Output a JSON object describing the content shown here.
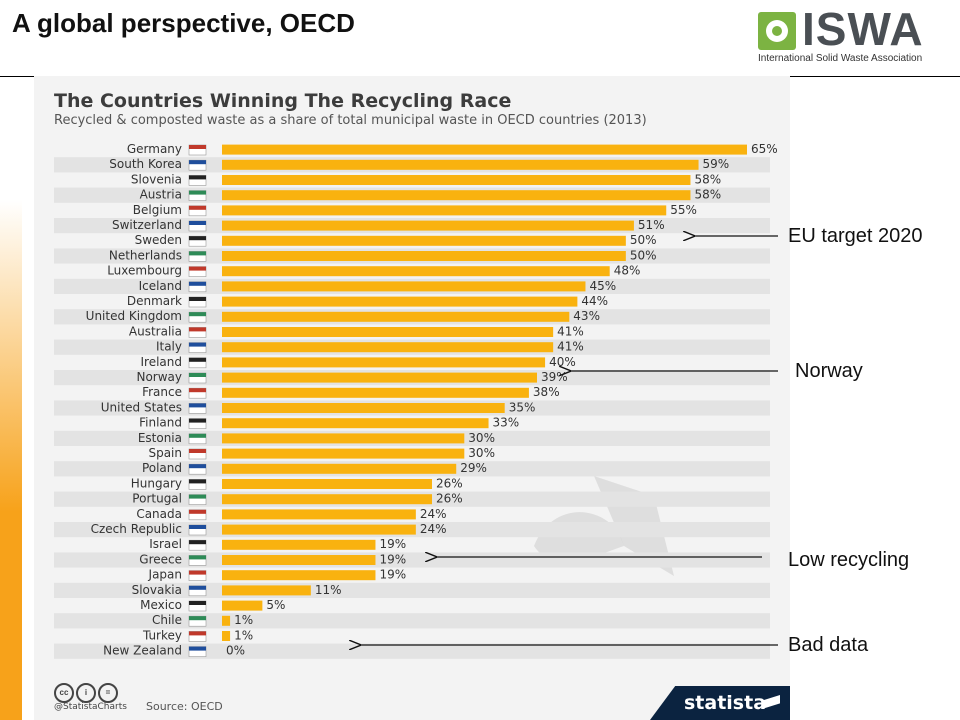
{
  "slide": {
    "title": "A global perspective, OECD"
  },
  "logo": {
    "word": "ISWA",
    "subtitle": "International Solid Waste Association"
  },
  "annotations": [
    {
      "text": "EU target 2020"
    },
    {
      "text": "Norway"
    },
    {
      "text": "Low recycling"
    },
    {
      "text": "Bad data"
    }
  ],
  "footer": {
    "cc": [
      "cc",
      "i",
      "="
    ],
    "handle": "@StatistaCharts",
    "source": "Source: OECD",
    "brand": "statista"
  },
  "colors": {
    "bar": "#f9b20f",
    "stripe": "#e3e3e3",
    "panel": "#f3f3f3",
    "accent_left": "#f7a21a"
  },
  "chart_data": {
    "type": "bar",
    "orientation": "horizontal",
    "title": "The Countries Winning The Recycling Race",
    "subtitle": "Recycled & composted waste as a share of total municipal waste in OECD countries (2013)",
    "xlim": [
      0,
      65
    ],
    "value_suffix": "%",
    "categories": [
      "Germany",
      "South Korea",
      "Slovenia",
      "Austria",
      "Belgium",
      "Switzerland",
      "Sweden",
      "Netherlands",
      "Luxembourg",
      "Iceland",
      "Denmark",
      "United Kingdom",
      "Australia",
      "Italy",
      "Ireland",
      "Norway",
      "France",
      "United States",
      "Finland",
      "Estonia",
      "Spain",
      "Poland",
      "Hungary",
      "Portugal",
      "Canada",
      "Czech Republic",
      "Israel",
      "Greece",
      "Japan",
      "Slovakia",
      "Mexico",
      "Chile",
      "Turkey",
      "New Zealand"
    ],
    "values": [
      65,
      59,
      58,
      58,
      55,
      51,
      50,
      50,
      48,
      45,
      44,
      43,
      41,
      41,
      40,
      39,
      38,
      35,
      33,
      30,
      30,
      29,
      26,
      26,
      24,
      24,
      19,
      19,
      19,
      11,
      5,
      1,
      1,
      0
    ],
    "labels": [
      "65%",
      "59%",
      "58%",
      "58%",
      "55%",
      "51%",
      "50%",
      "50%",
      "48%",
      "45%",
      "44%",
      "43%",
      "41%",
      "41%",
      "40%",
      "39%",
      "38%",
      "35%",
      "33%",
      "30%",
      "30%",
      "29%",
      "26%",
      "26%",
      "24%",
      "24%",
      "19%",
      "19%",
      "19%",
      "11%",
      "5%",
      "1%",
      "1%",
      "0%"
    ]
  }
}
